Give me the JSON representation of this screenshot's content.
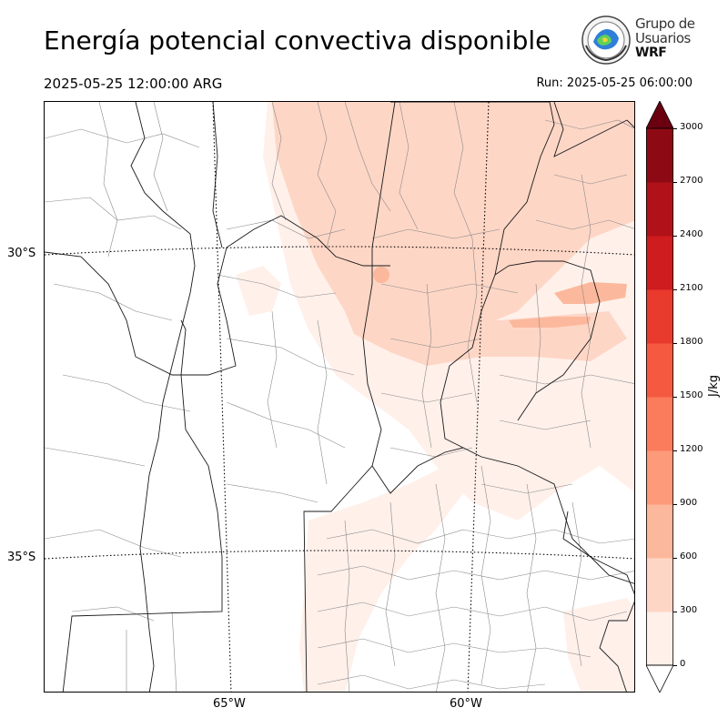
{
  "title": "Energía potencial convectiva disponible",
  "valid_time": "2025-05-25 12:00:00 ARG",
  "run_time": "Run: 2025-05-25 06:00:00",
  "logo": {
    "line1": "Grupo de",
    "line2": "Usuarios",
    "line3": "WRF",
    "icon": "wrf-globe-emblem-icon"
  },
  "map": {
    "lat_labels": [
      "30°S",
      "35°S"
    ],
    "lon_labels": [
      "65°W",
      "60°W"
    ],
    "colors": {
      "border": "#000000",
      "province": "#222222",
      "department": "#888888",
      "grid": "#000000"
    }
  },
  "colorbar": {
    "unit": "J/kg",
    "levels": [
      0,
      300,
      600,
      900,
      1200,
      1500,
      1800,
      2100,
      2400,
      2700,
      3000
    ],
    "tick_labels": [
      "0",
      "300",
      "600",
      "900",
      "1200",
      "1500",
      "1800",
      "2100",
      "2400",
      "2700",
      "3000"
    ],
    "colors": [
      "#fff0ea",
      "#fed6c6",
      "#fcb89c",
      "#fc9a7a",
      "#fb7c5c",
      "#f55a41",
      "#e83a2d",
      "#cf1c1f",
      "#b11118",
      "#8d0a14",
      "#6a0010"
    ],
    "extend": "both"
  }
}
